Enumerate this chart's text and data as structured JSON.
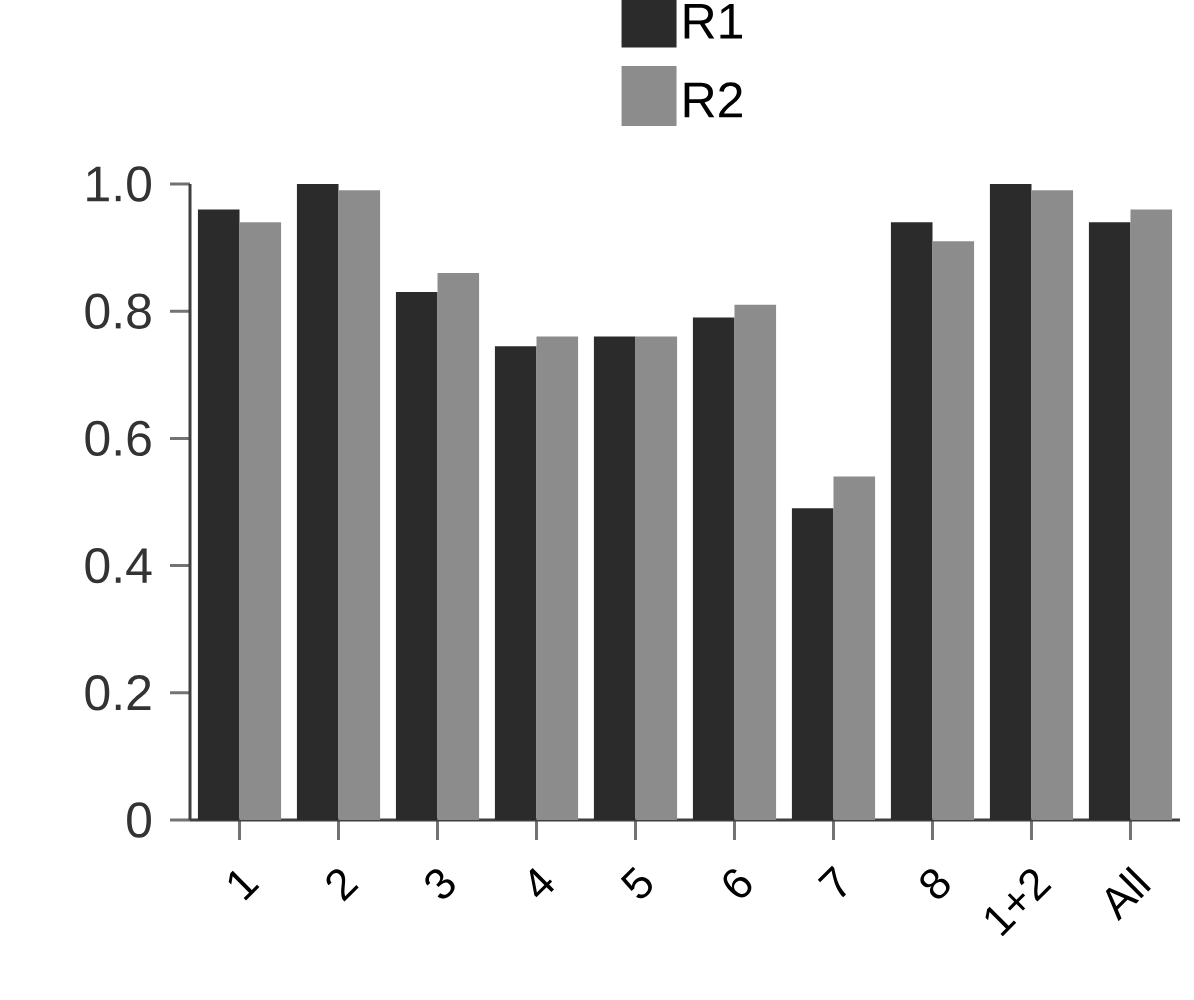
{
  "chart_data": {
    "type": "bar",
    "categories": [
      "1",
      "2",
      "3",
      "4",
      "5",
      "6",
      "7",
      "8",
      "1+2",
      "All"
    ],
    "series": [
      {
        "name": "R1",
        "color": "#2b2b2b",
        "values": [
          0.96,
          1.0,
          0.83,
          0.745,
          0.76,
          0.79,
          0.49,
          0.94,
          1.0,
          0.94
        ]
      },
      {
        "name": "R2",
        "color": "#8c8c8c",
        "values": [
          0.94,
          0.99,
          0.86,
          0.76,
          0.76,
          0.81,
          0.54,
          0.91,
          0.99,
          0.96
        ]
      }
    ],
    "ylim": [
      0,
      1.0
    ],
    "yticks": [
      0,
      0.2,
      0.4,
      0.6,
      0.8,
      {
        "value": 1,
        "label": "1.0"
      }
    ],
    "legend": "top",
    "grid": false
  }
}
